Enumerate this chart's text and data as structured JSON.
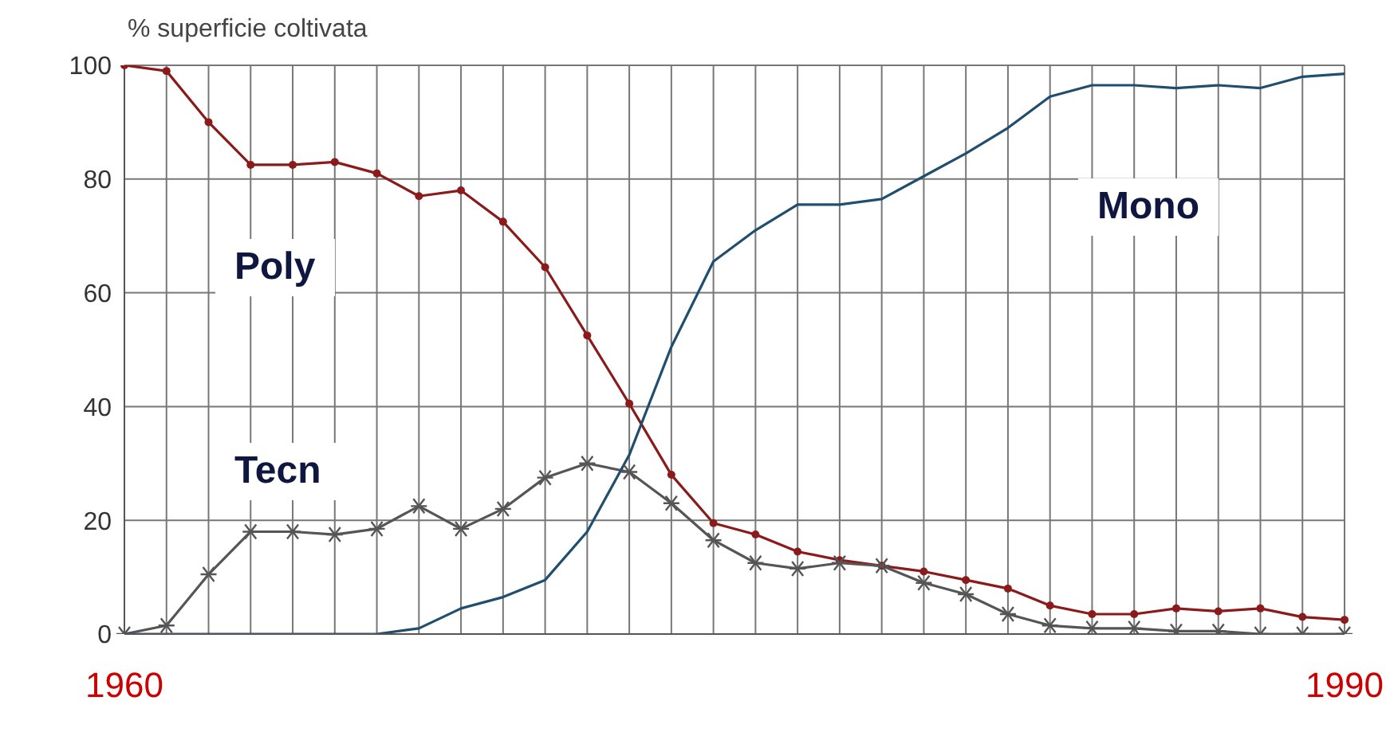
{
  "chart_data": {
    "type": "line",
    "ylabel": "% superficie coltivata",
    "categories": [
      "1960",
      null,
      null,
      null,
      null,
      null,
      null,
      null,
      null,
      null,
      null,
      null,
      null,
      null,
      null,
      null,
      null,
      null,
      null,
      null,
      null,
      null,
      null,
      null,
      null,
      null,
      null,
      null,
      null,
      "1990"
    ],
    "series": [
      {
        "name": "Poly",
        "color": "#8b1a1a",
        "marker": "circle",
        "values": [
          100,
          99,
          90,
          82.5,
          82.5,
          83,
          81,
          77,
          78,
          72.5,
          64.5,
          52.5,
          40.5,
          28,
          19.5,
          17.5,
          14.5,
          13,
          12,
          11,
          9.5,
          8,
          5,
          3.5,
          3.5,
          4.5,
          4,
          4.5,
          3,
          2.5
        ]
      },
      {
        "name": "Tecn",
        "color": "#555555",
        "marker": "cross",
        "values": [
          0,
          1.5,
          10.5,
          18,
          18,
          17.5,
          18.5,
          22.5,
          18.5,
          22,
          27.5,
          30,
          28.5,
          23,
          16.5,
          12.5,
          11.5,
          12.5,
          12,
          9,
          7,
          3.5,
          1.5,
          1,
          1,
          0.5,
          0.5,
          0,
          0,
          0
        ]
      },
      {
        "name": "Mono",
        "color": "#1f4e6e",
        "marker": "none",
        "values": [
          0,
          0,
          0,
          0,
          0,
          0,
          0,
          1,
          4.5,
          6.5,
          9.5,
          18,
          31.5,
          50.5,
          65.5,
          71,
          75.5,
          75.5,
          76.5,
          80.5,
          84.5,
          89,
          94.5,
          96.5,
          96.5,
          96,
          96.5,
          96,
          98,
          98.5
        ]
      }
    ],
    "ylim": [
      0,
      100
    ],
    "yticks": [
      0,
      20,
      40,
      60,
      80,
      100
    ],
    "grid": true,
    "legend": false
  }
}
